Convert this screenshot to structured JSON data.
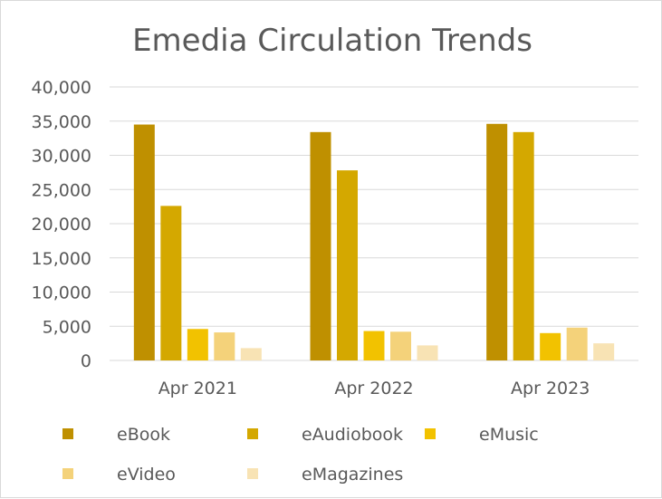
{
  "chart_data": {
    "type": "bar",
    "title": "Emedia Circulation Trends",
    "categories": [
      "Apr 2021",
      "Apr 2022",
      "Apr 2023"
    ],
    "series": [
      {
        "name": "eBook",
        "color": "#BF9000",
        "values": [
          34500,
          33400,
          34600
        ]
      },
      {
        "name": "eAudiobook",
        "color": "#D4A800",
        "values": [
          22600,
          27800,
          33400
        ]
      },
      {
        "name": "eMusic",
        "color": "#F2C200",
        "values": [
          4600,
          4300,
          4000
        ]
      },
      {
        "name": "eVideo",
        "color": "#F4D27A",
        "values": [
          4100,
          4200,
          4800
        ]
      },
      {
        "name": "eMagazines",
        "color": "#F8E3B4",
        "values": [
          1800,
          2200,
          2500
        ]
      }
    ],
    "ylim": [
      0,
      40000
    ],
    "yticks": [
      "0",
      "5,000",
      "10,000",
      "15,000",
      "20,000",
      "25,000",
      "30,000",
      "35,000",
      "40,000"
    ],
    "ytick_values": [
      0,
      5000,
      10000,
      15000,
      20000,
      25000,
      30000,
      35000,
      40000
    ],
    "grid": true,
    "legend_position": "bottom"
  }
}
